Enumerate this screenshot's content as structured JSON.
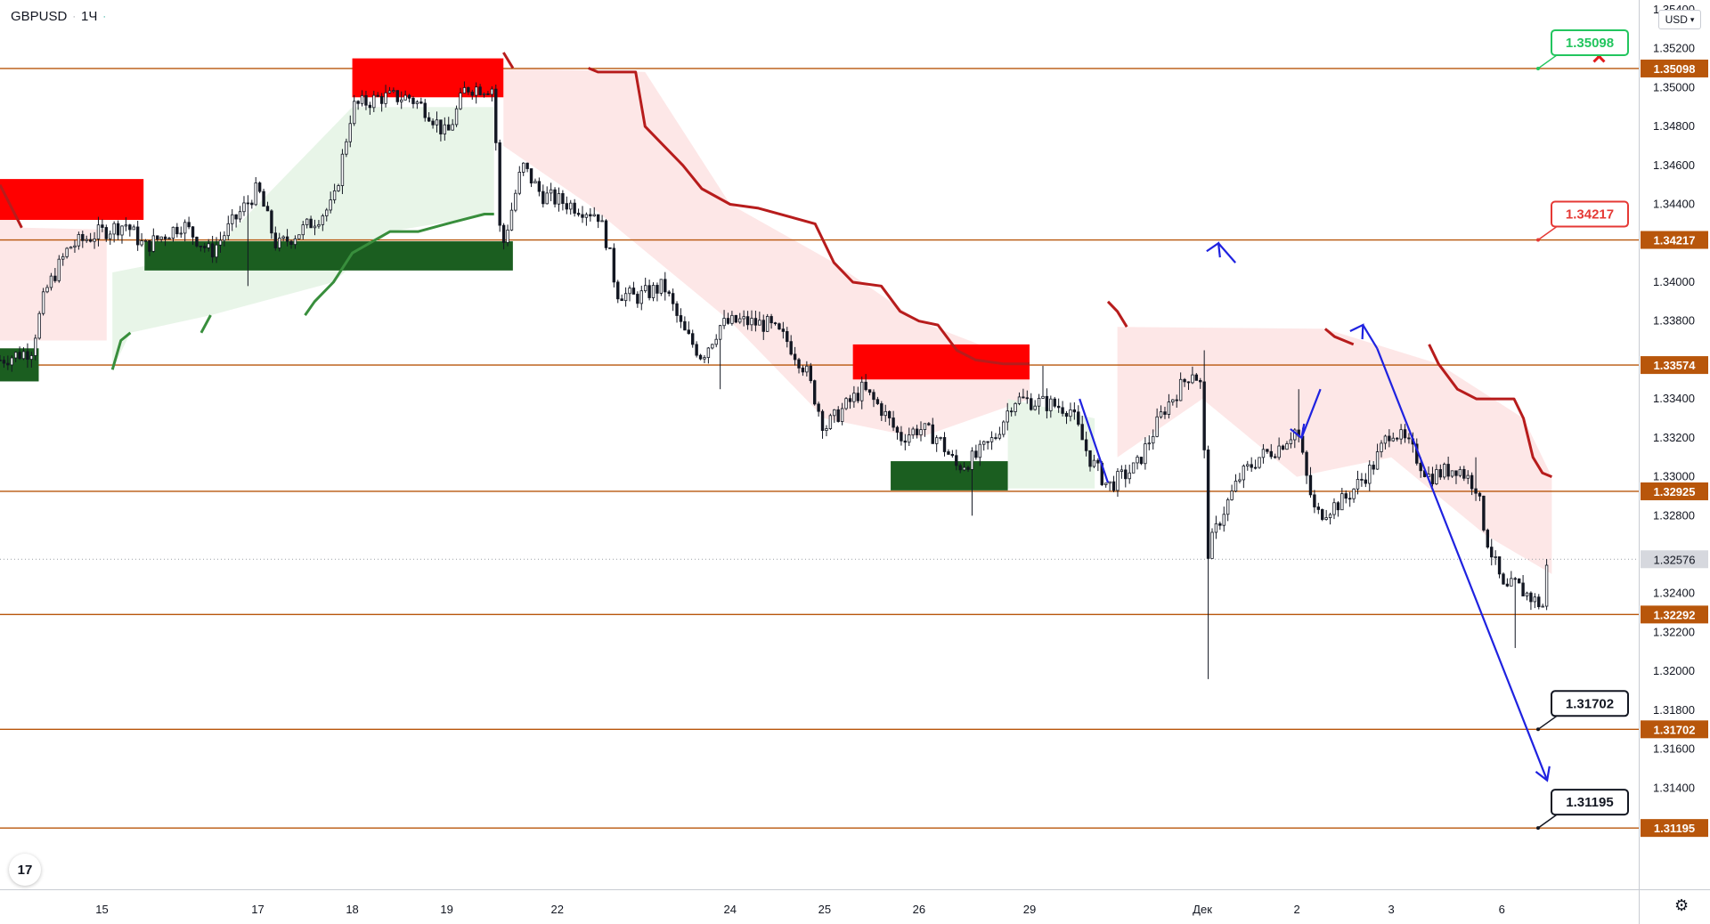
{
  "symbol": "GBPUSD",
  "timeframe": "1Ч",
  "currency": "USD",
  "colors": {
    "level_line": "#b8560b",
    "level_label_bg": "#b8560b",
    "red_zone": "#ff0000",
    "green_zone": "#1b5e20",
    "red_trail": "#b71c1c",
    "green_trail": "#388e3c",
    "red_fill": "#fde3e3",
    "green_fill": "#e6f4e6",
    "forecast": "#1f22e0",
    "candle": "#131722",
    "current_bg": "#d6d8de"
  },
  "icons": {
    "logo": "tradingview-logo-icon",
    "settings": "gear-icon",
    "cross": "cross-icon",
    "dropdown": "chevron-down-icon"
  },
  "chart_data": {
    "type": "candlestick",
    "title": "",
    "ylim": [
      1.3088,
      1.3545
    ],
    "y_ticks": [
      "1.35400",
      "1.35200",
      "1.35000",
      "1.34800",
      "1.34600",
      "1.34400",
      "1.34000",
      "1.33800",
      "1.33400",
      "1.33200",
      "1.33000",
      "1.32800",
      "1.32400",
      "1.32200",
      "1.32000",
      "1.31800",
      "1.31600",
      "1.31400"
    ],
    "x_tick_labels": [
      {
        "label": "15",
        "day": 3.35
      },
      {
        "label": "17",
        "day": 5.0
      },
      {
        "label": "18",
        "day": 6.0
      },
      {
        "label": "19",
        "day": 7.0
      },
      {
        "label": "22",
        "day": 8.17
      },
      {
        "label": "24",
        "day": 10.0
      },
      {
        "label": "25",
        "day": 11.0
      },
      {
        "label": "26",
        "day": 12.0
      },
      {
        "label": "29",
        "day": 13.17
      },
      {
        "label": "Дек",
        "day": 15.0
      },
      {
        "label": "2",
        "day": 16.0
      },
      {
        "label": "3",
        "day": 17.0
      },
      {
        "label": "6",
        "day": 18.17
      }
    ],
    "x_range_days": [
      2.27,
      19.62
    ],
    "price_levels": [
      {
        "label": "1.35098",
        "value": 1.35098
      },
      {
        "label": "1.34217",
        "value": 1.34217
      },
      {
        "label": "1.33574",
        "value": 1.33574
      },
      {
        "label": "1.32925",
        "value": 1.32925
      },
      {
        "label": "1.32292",
        "value": 1.32292
      },
      {
        "label": "1.31702",
        "value": 1.31702
      },
      {
        "label": "1.31195",
        "value": 1.31195
      }
    ],
    "current_price": {
      "label": "1.32576",
      "value": 1.32576
    },
    "target_callouts": [
      {
        "label": "1.35098",
        "value": 1.35098,
        "style": "green"
      },
      {
        "label": "1.34217",
        "value": 1.34217,
        "style": "red"
      },
      {
        "label": "1.31702",
        "value": 1.31702,
        "style": "black"
      },
      {
        "label": "1.31195",
        "value": 1.31195,
        "style": "black"
      }
    ],
    "supply_zones": [
      {
        "d0": 2.27,
        "d1": 3.79,
        "top": 1.3453,
        "bottom": 1.3432
      },
      {
        "d0": 6.0,
        "d1": 7.6,
        "top": 1.3515,
        "bottom": 1.3495
      },
      {
        "d0": 11.3,
        "d1": 13.17,
        "top": 1.3368,
        "bottom": 1.335
      }
    ],
    "demand_zones": [
      {
        "d0": 2.27,
        "d1": 2.68,
        "top": 1.3366,
        "bottom": 1.3349
      },
      {
        "d0": 3.8,
        "d1": 7.7,
        "top": 1.3421,
        "bottom": 1.3406
      },
      {
        "d0": 11.7,
        "d1": 12.94,
        "top": 1.3308,
        "bottom": 1.3293
      }
    ],
    "trail_resistance": [
      [
        2.27,
        1.345
      ],
      [
        2.5,
        1.3428
      ],
      [
        3.79,
        1.3427
      ],
      [
        7.6,
        1.3518
      ],
      [
        7.7,
        1.351
      ],
      [
        8.5,
        1.351
      ],
      [
        8.6,
        1.3508
      ],
      [
        9.0,
        1.3508
      ],
      [
        9.1,
        1.348
      ],
      [
        9.3,
        1.347
      ],
      [
        9.5,
        1.346
      ],
      [
        9.7,
        1.3448
      ],
      [
        10.0,
        1.344
      ],
      [
        10.3,
        1.3438
      ],
      [
        10.9,
        1.343
      ],
      [
        11.1,
        1.341
      ],
      [
        11.3,
        1.34
      ],
      [
        11.6,
        1.3398
      ],
      [
        11.8,
        1.3385
      ],
      [
        12.0,
        1.338
      ],
      [
        12.2,
        1.3378
      ],
      [
        12.4,
        1.3365
      ],
      [
        12.6,
        1.336
      ],
      [
        12.9,
        1.3358
      ],
      [
        13.17,
        1.3358
      ],
      [
        14.0,
        1.339
      ],
      [
        14.1,
        1.3385
      ],
      [
        14.2,
        1.3377
      ],
      [
        16.3,
        1.3376
      ],
      [
        16.4,
        1.3372
      ],
      [
        16.6,
        1.3368
      ],
      [
        17.4,
        1.3368
      ],
      [
        17.5,
        1.3358
      ],
      [
        17.7,
        1.3345
      ],
      [
        17.9,
        1.334
      ],
      [
        18.3,
        1.334
      ],
      [
        18.4,
        1.333
      ],
      [
        18.5,
        1.331
      ],
      [
        18.6,
        1.3302
      ],
      [
        18.7,
        1.33
      ]
    ],
    "trail_support": [
      [
        3.46,
        1.3355
      ],
      [
        3.55,
        1.337
      ],
      [
        3.65,
        1.3374
      ],
      [
        4.4,
        1.3374
      ],
      [
        4.5,
        1.3383
      ],
      [
        5.5,
        1.3383
      ],
      [
        5.6,
        1.339
      ],
      [
        5.8,
        1.34
      ],
      [
        6.0,
        1.3415
      ],
      [
        6.4,
        1.3426
      ],
      [
        6.7,
        1.3426
      ],
      [
        7.0,
        1.343
      ],
      [
        7.4,
        1.3435
      ],
      [
        7.5,
        1.3435
      ],
      [
        12.94,
        1.3294
      ],
      [
        13.86,
        1.3294
      ]
    ],
    "red_fill_zones": [
      {
        "d0": 2.27,
        "d1": 3.4,
        "upper": [
          [
            2.27,
            1.3452
          ],
          [
            2.5,
            1.3428
          ],
          [
            3.4,
            1.3427
          ]
        ],
        "lower": [
          [
            2.27,
            1.337
          ],
          [
            3.4,
            1.337
          ]
        ]
      },
      {
        "d0": 7.6,
        "d1": 13.17,
        "upper": [
          [
            7.6,
            1.351
          ],
          [
            9.1,
            1.3508
          ],
          [
            10.0,
            1.344
          ],
          [
            11.1,
            1.341
          ],
          [
            12.0,
            1.338
          ],
          [
            13.17,
            1.3358
          ]
        ],
        "lower": [
          [
            7.6,
            1.347
          ],
          [
            8.5,
            1.344
          ],
          [
            9.0,
            1.342
          ],
          [
            10.0,
            1.338
          ],
          [
            11.0,
            1.333
          ],
          [
            12.0,
            1.332
          ],
          [
            13.17,
            1.334
          ]
        ]
      },
      {
        "d0": 14.1,
        "d1": 18.7,
        "upper": [
          [
            14.1,
            1.3377
          ],
          [
            16.3,
            1.3376
          ],
          [
            17.5,
            1.3358
          ],
          [
            18.4,
            1.333
          ],
          [
            18.7,
            1.33
          ]
        ],
        "lower": [
          [
            14.1,
            1.331
          ],
          [
            15.0,
            1.334
          ],
          [
            16.0,
            1.33
          ],
          [
            17.0,
            1.331
          ],
          [
            18.0,
            1.327
          ],
          [
            18.7,
            1.325
          ]
        ]
      }
    ],
    "green_fill_zones": [
      {
        "upper": [
          [
            3.46,
            1.3405
          ],
          [
            4.5,
            1.3415
          ],
          [
            6.0,
            1.349
          ],
          [
            7.5,
            1.349
          ]
        ],
        "lower": [
          [
            3.46,
            1.3355
          ],
          [
            3.65,
            1.3374
          ],
          [
            4.5,
            1.3383
          ],
          [
            5.8,
            1.34
          ],
          [
            6.4,
            1.3426
          ],
          [
            7.5,
            1.3435
          ]
        ]
      },
      {
        "upper": [
          [
            12.94,
            1.334
          ],
          [
            13.86,
            1.333
          ]
        ],
        "lower": [
          [
            12.94,
            1.3294
          ],
          [
            13.86,
            1.3294
          ]
        ]
      }
    ],
    "forecast_path": [
      [
        13.7,
        1.334
      ],
      [
        14.0,
        1.3297
      ],
      [
        15.17,
        1.342
      ],
      [
        15.35,
        1.341
      ],
      [
        16.05,
        1.332
      ],
      [
        16.25,
        1.3345
      ],
      [
        16.7,
        1.3378
      ],
      [
        16.85,
        1.3366
      ],
      [
        18.65,
        1.3144
      ]
    ],
    "forecast_gaps": [
      2,
      4,
      6
    ],
    "price_anchors": [
      [
        2.27,
        1.336
      ],
      [
        2.6,
        1.3365
      ],
      [
        2.75,
        1.3395
      ],
      [
        3.0,
        1.3418
      ],
      [
        3.3,
        1.3425
      ],
      [
        3.6,
        1.343
      ],
      [
        3.8,
        1.3418
      ],
      [
        4.2,
        1.343
      ],
      [
        4.5,
        1.3415
      ],
      [
        4.8,
        1.3435
      ],
      [
        5.0,
        1.3448
      ],
      [
        5.2,
        1.3418
      ],
      [
        5.5,
        1.3428
      ],
      [
        5.8,
        1.344
      ],
      [
        6.0,
        1.349
      ],
      [
        6.3,
        1.3495
      ],
      [
        6.6,
        1.3495
      ],
      [
        6.8,
        1.3488
      ],
      [
        7.0,
        1.3475
      ],
      [
        7.2,
        1.35
      ],
      [
        7.5,
        1.35
      ],
      [
        7.55,
        1.343
      ],
      [
        7.6,
        1.342
      ],
      [
        7.8,
        1.346
      ],
      [
        8.0,
        1.3445
      ],
      [
        8.3,
        1.344
      ],
      [
        8.6,
        1.3435
      ],
      [
        8.7,
        1.342
      ],
      [
        8.8,
        1.3395
      ],
      [
        9.0,
        1.3392
      ],
      [
        9.3,
        1.3398
      ],
      [
        9.5,
        1.3375
      ],
      [
        9.7,
        1.3362
      ],
      [
        9.9,
        1.3378
      ],
      [
        10.1,
        1.338
      ],
      [
        10.4,
        1.3378
      ],
      [
        10.6,
        1.337
      ],
      [
        10.8,
        1.3355
      ],
      [
        11.0,
        1.3325
      ],
      [
        11.2,
        1.3335
      ],
      [
        11.4,
        1.3345
      ],
      [
        11.6,
        1.3335
      ],
      [
        11.8,
        1.332
      ],
      [
        12.0,
        1.3325
      ],
      [
        12.2,
        1.332
      ],
      [
        12.4,
        1.3305
      ],
      [
        12.6,
        1.331
      ],
      [
        12.8,
        1.332
      ],
      [
        13.0,
        1.334
      ],
      [
        13.3,
        1.3338
      ],
      [
        13.6,
        1.3335
      ],
      [
        13.8,
        1.331
      ],
      [
        14.0,
        1.3295
      ],
      [
        14.3,
        1.3305
      ],
      [
        14.6,
        1.3335
      ],
      [
        14.9,
        1.3355
      ],
      [
        15.0,
        1.3345
      ],
      [
        15.05,
        1.326
      ],
      [
        15.2,
        1.328
      ],
      [
        15.4,
        1.33
      ],
      [
        15.6,
        1.331
      ],
      [
        15.8,
        1.3315
      ],
      [
        16.0,
        1.3325
      ],
      [
        16.1,
        1.33
      ],
      [
        16.2,
        1.328
      ],
      [
        16.5,
        1.3288
      ],
      [
        16.8,
        1.3305
      ],
      [
        17.0,
        1.3325
      ],
      [
        17.2,
        1.3315
      ],
      [
        17.4,
        1.33
      ],
      [
        17.7,
        1.3305
      ],
      [
        17.9,
        1.3295
      ],
      [
        18.0,
        1.327
      ],
      [
        18.2,
        1.324
      ],
      [
        18.3,
        1.3245
      ],
      [
        18.5,
        1.3237
      ],
      [
        18.62,
        1.3233
      ],
      [
        18.65,
        1.3257
      ]
    ],
    "wick_highs": [
      [
        15.0,
        1.3365
      ],
      [
        13.3,
        1.3357
      ],
      [
        16.0,
        1.3345
      ],
      [
        17.9,
        1.331
      ]
    ],
    "wick_lows": [
      [
        15.05,
        1.3196
      ],
      [
        18.32,
        1.3212
      ],
      [
        12.56,
        1.328
      ],
      [
        4.9,
        1.3398
      ],
      [
        9.9,
        1.3345
      ]
    ]
  }
}
